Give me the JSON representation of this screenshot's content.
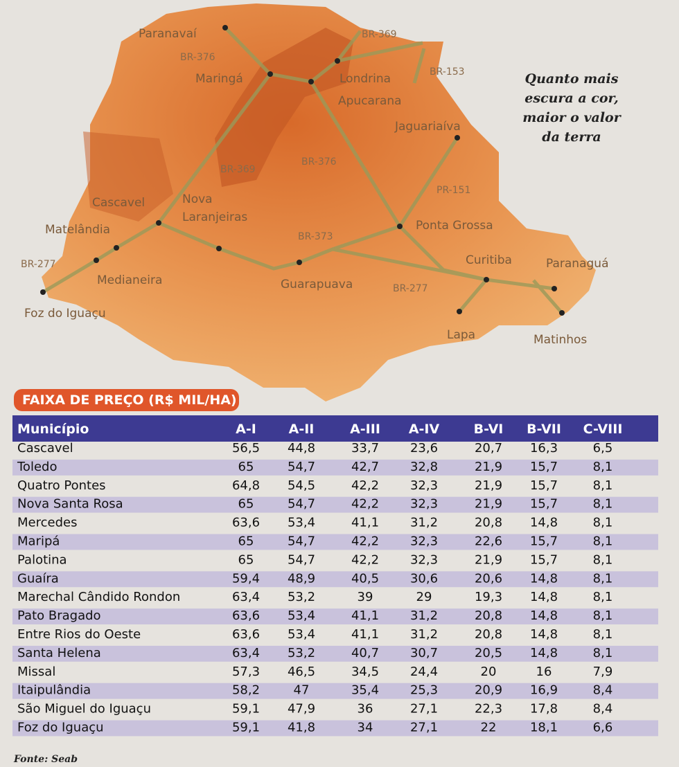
{
  "map": {
    "caption": [
      "Quanto mais",
      "escura a cor,",
      "maior o valor",
      "da terra"
    ],
    "cities": [
      [
        "Paranavaí"
      ],
      [
        "Maringá"
      ],
      [
        "Londrina"
      ],
      [
        "Apucarana"
      ],
      [
        "Jaguariaíva"
      ],
      [
        "Cascavel"
      ],
      [
        "Nova",
        "Laranjeiras"
      ],
      [
        "Matelândia"
      ],
      [
        "Medianeira"
      ],
      [
        "Foz do Iguaçu"
      ],
      [
        "Ponta Grossa"
      ],
      [
        "Guarapuava"
      ],
      [
        "Curitiba"
      ],
      [
        "Paranaguá"
      ],
      [
        "Lapa"
      ],
      [
        "Matinhos"
      ]
    ],
    "roads": [
      "BR-369",
      "BR-376",
      "BR-153",
      "BR-369",
      "BR-376",
      "PR-151",
      "BR-373",
      "BR-277",
      "BR-277"
    ]
  },
  "table": {
    "title": "FAIXA DE PREÇO (R$ MIL/HA)",
    "header": [
      "Município",
      "A-I",
      "A-II",
      "A-III",
      "A-IV",
      "B-VI",
      "B-VII",
      "C-VIII"
    ],
    "rows": [
      [
        "Cascavel",
        "56,5",
        "44,8",
        "33,7",
        "23,6",
        "20,7",
        "16,3",
        "6,5"
      ],
      [
        "Toledo",
        "65",
        "54,7",
        "42,7",
        "32,8",
        "21,9",
        "15,7",
        "8,1"
      ],
      [
        "Quatro Pontes",
        "64,8",
        "54,5",
        "42,2",
        "32,3",
        "21,9",
        "15,7",
        "8,1"
      ],
      [
        "Nova Santa Rosa",
        "65",
        "54,7",
        "42,2",
        "32,3",
        "21,9",
        "15,7",
        "8,1"
      ],
      [
        "Mercedes",
        "63,6",
        "53,4",
        "41,1",
        "31,2",
        "20,8",
        "14,8",
        "8,1"
      ],
      [
        "Maripá",
        "65",
        "54,7",
        "42,2",
        "32,3",
        "22,6",
        "15,7",
        "8,1"
      ],
      [
        "Palotina",
        "65",
        "54,7",
        "42,2",
        "32,3",
        "21,9",
        "15,7",
        "8,1"
      ],
      [
        "Guaíra",
        "59,4",
        "48,9",
        "40,5",
        "30,6",
        "20,6",
        "14,8",
        "8,1"
      ],
      [
        "Marechal Cândido Rondon",
        "63,4",
        "53,2",
        "39",
        "29",
        "19,3",
        "14,8",
        "8,1"
      ],
      [
        "Pato Bragado",
        "63,6",
        "53,4",
        "41,1",
        "31,2",
        "20,8",
        "14,8",
        "8,1"
      ],
      [
        "Entre Rios do Oeste",
        "63,6",
        "53,4",
        "41,1",
        "31,2",
        "20,8",
        "14,8",
        "8,1"
      ],
      [
        "Santa Helena",
        "63,4",
        "53,2",
        "40,7",
        "30,7",
        "20,5",
        "14,8",
        "8,1"
      ],
      [
        "Missal",
        "57,3",
        "46,5",
        "34,5",
        "24,4",
        "20",
        "16",
        "7,9"
      ],
      [
        "Itaipulândia",
        "58,2",
        "47",
        "35,4",
        "25,3",
        "20,9",
        "16,9",
        "8,4"
      ],
      [
        "São Miguel do Iguaçu",
        "59,1",
        "47,9",
        "36",
        "27,1",
        "22,3",
        "17,8",
        "8,4"
      ],
      [
        "Foz do Iguaçu",
        "59,1",
        "41,8",
        "34",
        "27,1",
        "22",
        "18,1",
        "6,6"
      ]
    ],
    "source": "Fonte: Seab"
  }
}
